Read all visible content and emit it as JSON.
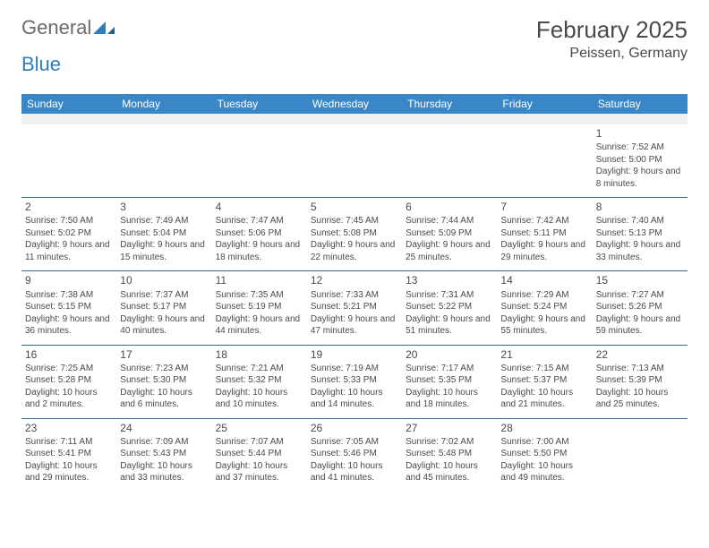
{
  "logo": {
    "text_gray": "General",
    "text_blue": "Blue"
  },
  "title": "February 2025",
  "location": "Peissen, Germany",
  "header_bg": "#3a87c7",
  "divider_color": "#3a6fa0",
  "dayNames": [
    "Sunday",
    "Monday",
    "Tuesday",
    "Wednesday",
    "Thursday",
    "Friday",
    "Saturday"
  ],
  "weeks": [
    [
      null,
      null,
      null,
      null,
      null,
      null,
      {
        "n": "1",
        "sr": "Sunrise: 7:52 AM",
        "ss": "Sunset: 5:00 PM",
        "dl": "Daylight: 9 hours and 8 minutes."
      }
    ],
    [
      {
        "n": "2",
        "sr": "Sunrise: 7:50 AM",
        "ss": "Sunset: 5:02 PM",
        "dl": "Daylight: 9 hours and 11 minutes."
      },
      {
        "n": "3",
        "sr": "Sunrise: 7:49 AM",
        "ss": "Sunset: 5:04 PM",
        "dl": "Daylight: 9 hours and 15 minutes."
      },
      {
        "n": "4",
        "sr": "Sunrise: 7:47 AM",
        "ss": "Sunset: 5:06 PM",
        "dl": "Daylight: 9 hours and 18 minutes."
      },
      {
        "n": "5",
        "sr": "Sunrise: 7:45 AM",
        "ss": "Sunset: 5:08 PM",
        "dl": "Daylight: 9 hours and 22 minutes."
      },
      {
        "n": "6",
        "sr": "Sunrise: 7:44 AM",
        "ss": "Sunset: 5:09 PM",
        "dl": "Daylight: 9 hours and 25 minutes."
      },
      {
        "n": "7",
        "sr": "Sunrise: 7:42 AM",
        "ss": "Sunset: 5:11 PM",
        "dl": "Daylight: 9 hours and 29 minutes."
      },
      {
        "n": "8",
        "sr": "Sunrise: 7:40 AM",
        "ss": "Sunset: 5:13 PM",
        "dl": "Daylight: 9 hours and 33 minutes."
      }
    ],
    [
      {
        "n": "9",
        "sr": "Sunrise: 7:38 AM",
        "ss": "Sunset: 5:15 PM",
        "dl": "Daylight: 9 hours and 36 minutes."
      },
      {
        "n": "10",
        "sr": "Sunrise: 7:37 AM",
        "ss": "Sunset: 5:17 PM",
        "dl": "Daylight: 9 hours and 40 minutes."
      },
      {
        "n": "11",
        "sr": "Sunrise: 7:35 AM",
        "ss": "Sunset: 5:19 PM",
        "dl": "Daylight: 9 hours and 44 minutes."
      },
      {
        "n": "12",
        "sr": "Sunrise: 7:33 AM",
        "ss": "Sunset: 5:21 PM",
        "dl": "Daylight: 9 hours and 47 minutes."
      },
      {
        "n": "13",
        "sr": "Sunrise: 7:31 AM",
        "ss": "Sunset: 5:22 PM",
        "dl": "Daylight: 9 hours and 51 minutes."
      },
      {
        "n": "14",
        "sr": "Sunrise: 7:29 AM",
        "ss": "Sunset: 5:24 PM",
        "dl": "Daylight: 9 hours and 55 minutes."
      },
      {
        "n": "15",
        "sr": "Sunrise: 7:27 AM",
        "ss": "Sunset: 5:26 PM",
        "dl": "Daylight: 9 hours and 59 minutes."
      }
    ],
    [
      {
        "n": "16",
        "sr": "Sunrise: 7:25 AM",
        "ss": "Sunset: 5:28 PM",
        "dl": "Daylight: 10 hours and 2 minutes."
      },
      {
        "n": "17",
        "sr": "Sunrise: 7:23 AM",
        "ss": "Sunset: 5:30 PM",
        "dl": "Daylight: 10 hours and 6 minutes."
      },
      {
        "n": "18",
        "sr": "Sunrise: 7:21 AM",
        "ss": "Sunset: 5:32 PM",
        "dl": "Daylight: 10 hours and 10 minutes."
      },
      {
        "n": "19",
        "sr": "Sunrise: 7:19 AM",
        "ss": "Sunset: 5:33 PM",
        "dl": "Daylight: 10 hours and 14 minutes."
      },
      {
        "n": "20",
        "sr": "Sunrise: 7:17 AM",
        "ss": "Sunset: 5:35 PM",
        "dl": "Daylight: 10 hours and 18 minutes."
      },
      {
        "n": "21",
        "sr": "Sunrise: 7:15 AM",
        "ss": "Sunset: 5:37 PM",
        "dl": "Daylight: 10 hours and 21 minutes."
      },
      {
        "n": "22",
        "sr": "Sunrise: 7:13 AM",
        "ss": "Sunset: 5:39 PM",
        "dl": "Daylight: 10 hours and 25 minutes."
      }
    ],
    [
      {
        "n": "23",
        "sr": "Sunrise: 7:11 AM",
        "ss": "Sunset: 5:41 PM",
        "dl": "Daylight: 10 hours and 29 minutes."
      },
      {
        "n": "24",
        "sr": "Sunrise: 7:09 AM",
        "ss": "Sunset: 5:43 PM",
        "dl": "Daylight: 10 hours and 33 minutes."
      },
      {
        "n": "25",
        "sr": "Sunrise: 7:07 AM",
        "ss": "Sunset: 5:44 PM",
        "dl": "Daylight: 10 hours and 37 minutes."
      },
      {
        "n": "26",
        "sr": "Sunrise: 7:05 AM",
        "ss": "Sunset: 5:46 PM",
        "dl": "Daylight: 10 hours and 41 minutes."
      },
      {
        "n": "27",
        "sr": "Sunrise: 7:02 AM",
        "ss": "Sunset: 5:48 PM",
        "dl": "Daylight: 10 hours and 45 minutes."
      },
      {
        "n": "28",
        "sr": "Sunrise: 7:00 AM",
        "ss": "Sunset: 5:50 PM",
        "dl": "Daylight: 10 hours and 49 minutes."
      },
      null
    ]
  ]
}
